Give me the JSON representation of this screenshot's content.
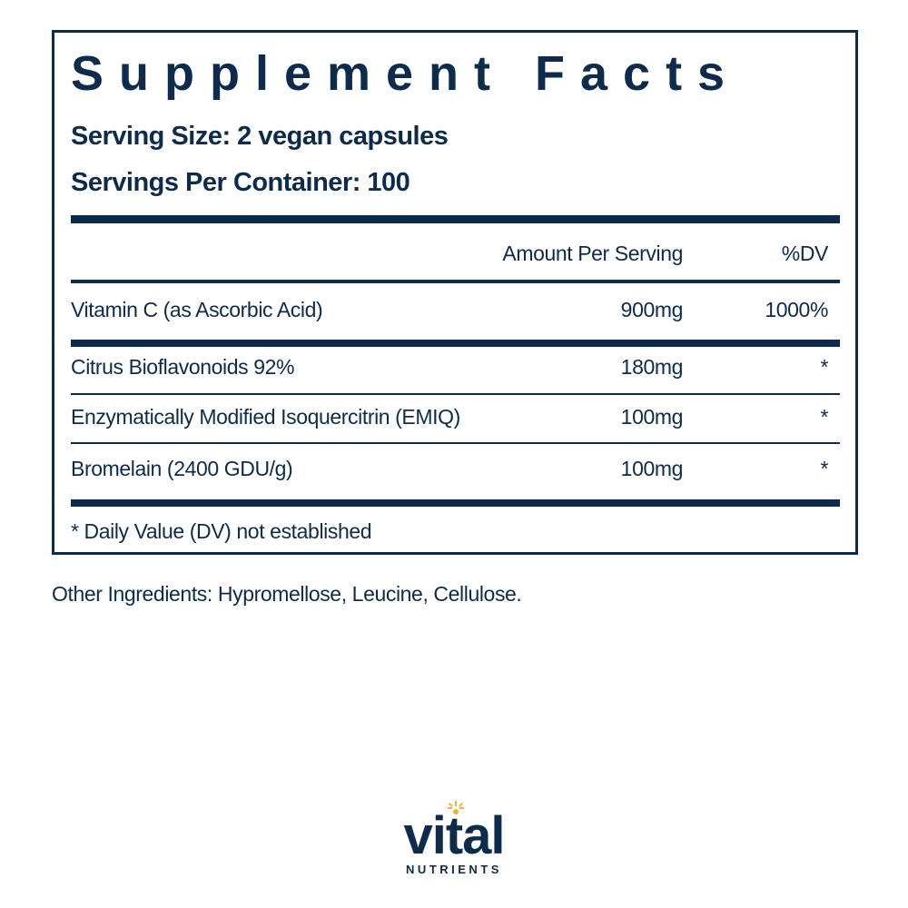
{
  "header": {
    "title": "Supplement Facts",
    "serving_size": "Serving Size: 2 vegan capsules",
    "servings_per_container": "Servings Per Container: 100"
  },
  "table": {
    "columns": [
      "Amount Per Serving",
      "%DV"
    ],
    "rows": [
      [
        "Vitamin C (as Ascorbic Acid)",
        "900mg",
        "1000%"
      ],
      [
        "Citrus Bioflavonoids 92%",
        "180mg",
        "*"
      ],
      [
        "Enzymatically Modified Isoquercitrin (EMIQ)",
        "100mg",
        "*"
      ],
      [
        "Bromelain (2400 GDU/g)",
        "100mg",
        "*"
      ]
    ]
  },
  "footnote": "* Daily Value (DV) not established",
  "other_ingredients": "Other Ingredients: Hypromellose, Leucine, Cellulose.",
  "logo": {
    "name": "vital",
    "tagline": "NUTRIENTS"
  }
}
